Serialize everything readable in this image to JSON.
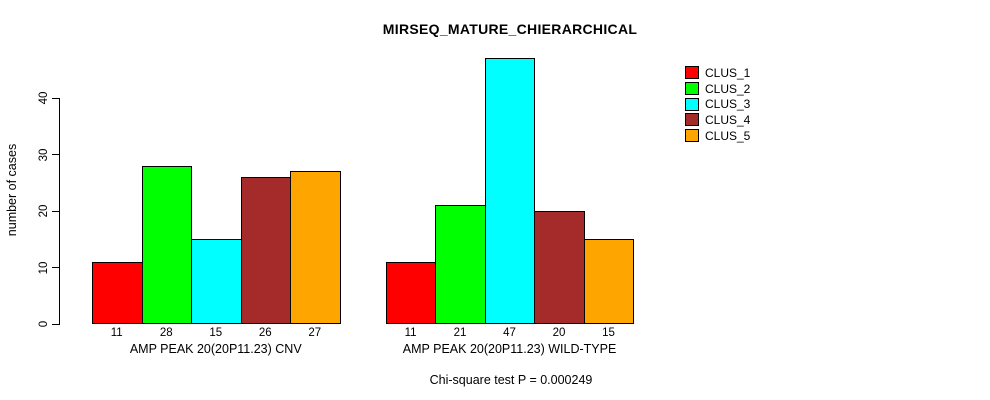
{
  "title": "MIRSEQ_MATURE_CHIERARCHICAL",
  "footer": "Chi-square test P = 0.000249",
  "y_axis": {
    "label": "number of cases",
    "ticks": [
      0,
      10,
      20,
      30,
      40
    ]
  },
  "legend": {
    "position": "top-right",
    "items": [
      {
        "label": "CLUS_1",
        "color": "#FF0000"
      },
      {
        "label": "CLUS_2",
        "color": "#00FF00"
      },
      {
        "label": "CLUS_3",
        "color": "#00FFFF"
      },
      {
        "label": "CLUS_4",
        "color": "#A52A2A"
      },
      {
        "label": "CLUS_5",
        "color": "#FFA500"
      }
    ]
  },
  "chart_data": {
    "type": "bar",
    "title": "MIRSEQ_MATURE_CHIERARCHICAL",
    "categories": [
      "AMP PEAK 20(20P11.23) CNV",
      "AMP PEAK 20(20P11.23) WILD-TYPE"
    ],
    "series": [
      {
        "name": "CLUS_1",
        "color": "#FF0000",
        "values": [
          11,
          11
        ]
      },
      {
        "name": "CLUS_2",
        "color": "#00FF00",
        "values": [
          28,
          21
        ]
      },
      {
        "name": "CLUS_3",
        "color": "#00FFFF",
        "values": [
          15,
          47
        ]
      },
      {
        "name": "CLUS_4",
        "color": "#A52A2A",
        "values": [
          26,
          20
        ]
      },
      {
        "name": "CLUS_5",
        "color": "#FFA500",
        "values": [
          27,
          15
        ]
      }
    ],
    "xlabel": "",
    "ylabel": "number of cases",
    "ylim": [
      0,
      47
    ],
    "yticks": [
      0,
      10,
      20,
      30,
      40
    ],
    "bar_value_labels": true,
    "grid": false,
    "legend_position": "top-right",
    "annotation": "Chi-square test P = 0.000249"
  }
}
